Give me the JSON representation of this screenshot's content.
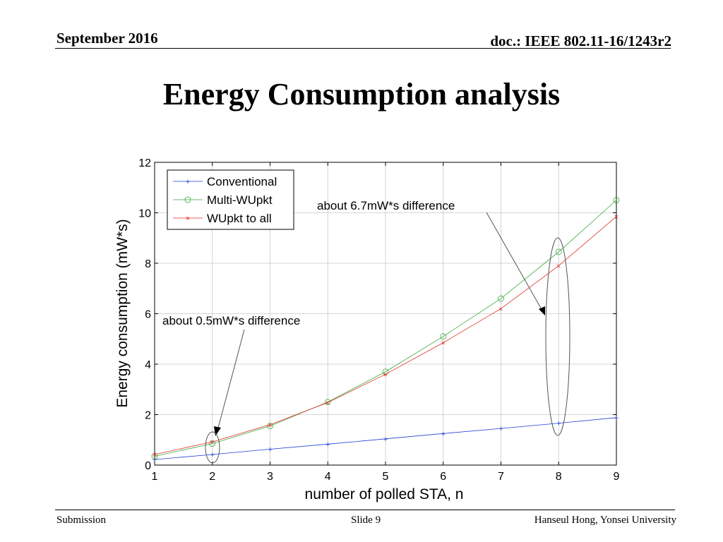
{
  "header": {
    "date": "September 2016",
    "doc_id": "doc.: IEEE 802.11-16/1243r2"
  },
  "slide": {
    "title": "Energy Consumption analysis"
  },
  "footer": {
    "left": "Submission",
    "center": "Slide 9",
    "right": "Hanseul Hong, Yonsei University"
  },
  "colors": {
    "conventional": "#1f3fd6",
    "multi": "#3aa83a",
    "wupkt": "#e0302a"
  },
  "chart_data": {
    "type": "line",
    "x": [
      1,
      2,
      3,
      4,
      5,
      6,
      7,
      8,
      9
    ],
    "xlabel": "number of polled STA, n",
    "ylabel": "Energy consumption (mW*s)",
    "xlim": [
      1,
      9
    ],
    "ylim": [
      0,
      12
    ],
    "xticks": [
      "1",
      "2",
      "3",
      "4",
      "5",
      "6",
      "7",
      "8",
      "9"
    ],
    "yticks": [
      "0",
      "2",
      "4",
      "6",
      "8",
      "10",
      "12"
    ],
    "grid": true,
    "legend_position": "top-left",
    "series": [
      {
        "name": "Conventional",
        "marker": "+",
        "color_key": "conventional",
        "values": [
          0.22,
          0.42,
          0.63,
          0.83,
          1.04,
          1.25,
          1.45,
          1.66,
          1.88
        ]
      },
      {
        "name": "Multi-WUpkt",
        "marker": "o",
        "color_key": "multi",
        "values": [
          0.35,
          0.85,
          1.55,
          2.5,
          3.7,
          5.1,
          6.6,
          8.45,
          10.5
        ]
      },
      {
        "name": "WUpkt to all",
        "marker": "x",
        "color_key": "wupkt",
        "values": [
          0.42,
          0.92,
          1.6,
          2.48,
          3.6,
          4.85,
          6.2,
          7.9,
          9.85
        ]
      }
    ],
    "annotations": [
      {
        "text": "about 0.5mW*s difference"
      },
      {
        "text": "about 6.7mW*s difference"
      }
    ]
  }
}
